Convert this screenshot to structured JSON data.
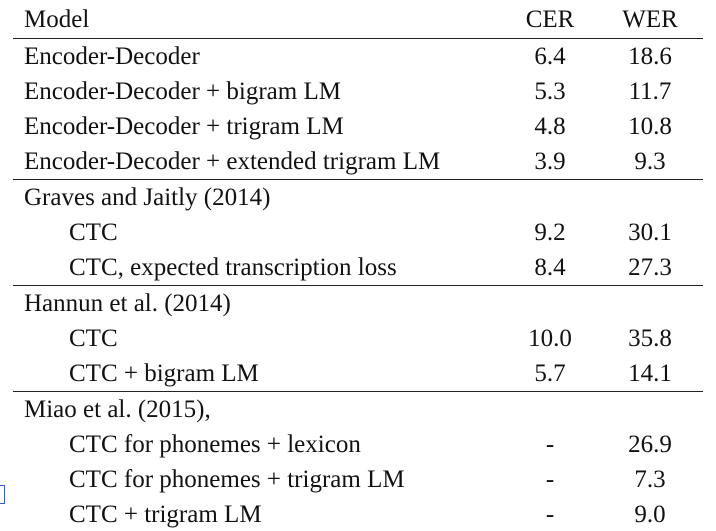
{
  "header": {
    "model": "Model",
    "cer": "CER",
    "wer": "WER"
  },
  "groups": [
    {
      "title": null,
      "rows": [
        {
          "model": "Encoder-Decoder",
          "cer": "6.4",
          "wer": "18.6"
        },
        {
          "model": "Encoder-Decoder + bigram LM",
          "cer": "5.3",
          "wer": "11.7"
        },
        {
          "model": "Encoder-Decoder + trigram LM",
          "cer": "4.8",
          "wer": "10.8"
        },
        {
          "model": "Encoder-Decoder + extended trigram LM",
          "cer": "3.9",
          "wer": "9.3"
        }
      ]
    },
    {
      "title": "Graves and Jaitly (2014)",
      "rows": [
        {
          "model": "CTC",
          "cer": "9.2",
          "wer": "30.1"
        },
        {
          "model": "CTC, expected transcription loss",
          "cer": "8.4",
          "wer": "27.3"
        }
      ]
    },
    {
      "title": "Hannun et al. (2014)",
      "rows": [
        {
          "model": "CTC",
          "cer": "10.0",
          "wer": "35.8"
        },
        {
          "model": "CTC + bigram LM",
          "cer": "5.7",
          "wer": "14.1"
        }
      ]
    },
    {
      "title": "Miao et al. (2015),",
      "rows": [
        {
          "model": "CTC for phonemes + lexicon",
          "cer": "-",
          "wer": "26.9"
        },
        {
          "model": "CTC for phonemes + trigram LM",
          "cer": "-",
          "wer": "7.3"
        },
        {
          "model": "CTC + trigram LM",
          "cer": "-",
          "wer": "9.0"
        }
      ]
    }
  ]
}
